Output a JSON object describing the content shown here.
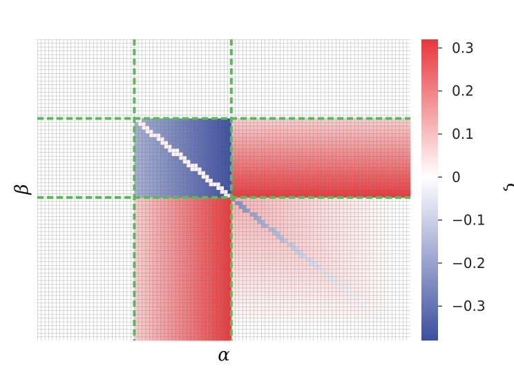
{
  "chart_data": {
    "type": "heatmap",
    "title": "",
    "xlabel": "α",
    "ylabel": "β",
    "colorbar_label": "ζ",
    "colormap": {
      "min_color": "#3b4ea0",
      "mid_color": "#ffffff",
      "max_color": "#e8363a",
      "vmin": -0.38,
      "vmax": 0.32
    },
    "colorbar_ticks": [
      {
        "value": 0.3,
        "label": "0.3"
      },
      {
        "value": 0.2,
        "label": "0.2"
      },
      {
        "value": 0.1,
        "label": "0.1"
      },
      {
        "value": 0,
        "label": "0"
      },
      {
        "value": -0.1,
        "label": "−0.1"
      },
      {
        "value": -0.2,
        "label": "−0.2"
      },
      {
        "value": -0.3,
        "label": "−0.3"
      }
    ],
    "grid": {
      "cols": 100,
      "rows": 80
    },
    "regions": {
      "x_boundaries": [
        26,
        52
      ],
      "y_boundaries": [
        21,
        42
      ],
      "blue_block_peak": -0.38,
      "red_block_peak": 0.32
    },
    "highlight_color": "#5cb85c",
    "gridline_color": "#6b6b6b"
  }
}
